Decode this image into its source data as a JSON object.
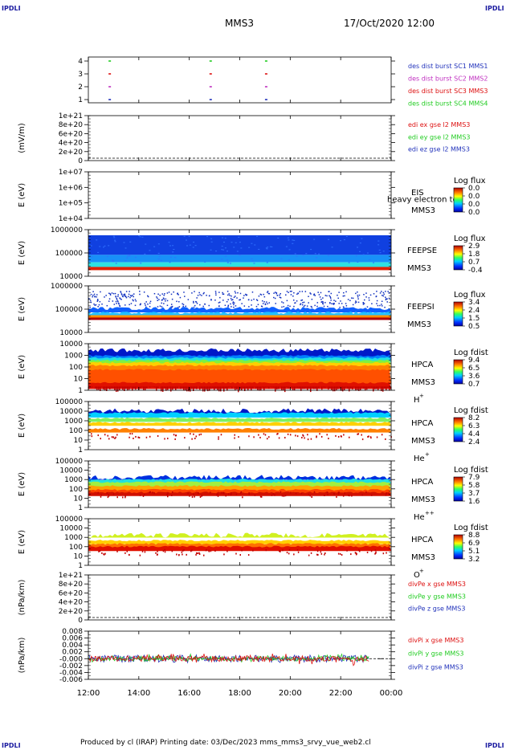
{
  "corners": {
    "label": "IPDLI"
  },
  "header": {
    "mission": "MMS3",
    "datetime": "17/Oct/2020 12:00"
  },
  "footer": {
    "text": "Produced by cl (IRAP)   Printing date: 03/Dec/2023   mms_mms3_srvy_vue_web2.cl"
  },
  "time_axis": {
    "ticks": [
      "12:00",
      "14:00",
      "16:00",
      "18:00",
      "20:00",
      "22:00",
      "00:00"
    ]
  },
  "colors": {
    "blue": "#2233bb",
    "magenta": "#c030c0",
    "red": "#dd1111",
    "green": "#22cc22"
  },
  "panels": [
    {
      "id": "burst",
      "ylabel": "",
      "yticks": [
        "4",
        "3",
        "2",
        "1"
      ],
      "legend": [
        {
          "text": "des dist burst SC1 MMS1",
          "color": "#2233bb"
        },
        {
          "text": "des dist burst SC2 MMS2",
          "color": "#c030c0"
        },
        {
          "text": "des dist burst SC3 MMS3",
          "color": "#dd1111"
        },
        {
          "text": "des dist burst SC4 MMS4",
          "color": "#22cc22"
        }
      ]
    },
    {
      "id": "edi",
      "ylabel": "(mV/m)",
      "yticks": [
        "1e+21",
        "8e+20",
        "6e+20",
        "4e+20",
        "2e+20",
        "0"
      ],
      "legend": [
        {
          "text": "edi ex gse l2 MMS3",
          "color": "#dd1111"
        },
        {
          "text": "edi ey gse l2 MMS3",
          "color": "#22cc22"
        },
        {
          "text": "edi ez gse l2 MMS3",
          "color": "#2233bb"
        }
      ]
    },
    {
      "id": "eis",
      "ylabel": "E (eV)",
      "yticks": [
        "1e+07",
        "1e+06",
        "1e+05",
        "1e+04"
      ],
      "side": [
        "EIS",
        "MMS3"
      ],
      "overlay": "heavy electron to",
      "cb": {
        "title": "Log flux",
        "values": [
          "0.0",
          "0.0",
          "0.0",
          "0.0"
        ]
      }
    },
    {
      "id": "feepse",
      "ylabel": "E (eV)",
      "yticks": [
        "1000000",
        "100000",
        "10000"
      ],
      "side": [
        "FEEPSE",
        "MMS3"
      ],
      "cb": {
        "title": "Log flux",
        "values": [
          "2.9",
          "1.8",
          "0.7",
          "-0.4"
        ]
      }
    },
    {
      "id": "feepsi",
      "ylabel": "E (eV)",
      "yticks": [
        "1000000",
        "100000",
        "10000"
      ],
      "side": [
        "FEEPSI",
        "MMS3"
      ],
      "cb": {
        "title": "Log flux",
        "values": [
          "3.4",
          "2.4",
          "1.5",
          "0.5"
        ]
      }
    },
    {
      "id": "hpca_h",
      "ylabel": "E (eV)",
      "yticks": [
        "10000",
        "1000",
        "100",
        "10",
        "1"
      ],
      "side": [
        "HPCA",
        "MMS3"
      ],
      "species": "H",
      "sup": "+",
      "cb": {
        "title": "Log fdist",
        "values": [
          "9.4",
          "6.5",
          "3.6",
          "0.7"
        ]
      }
    },
    {
      "id": "hpca_he1",
      "ylabel": "E (eV)",
      "yticks": [
        "100000",
        "10000",
        "1000",
        "100",
        "10",
        "1"
      ],
      "side": [
        "HPCA",
        "MMS3"
      ],
      "species": "He",
      "sup": "+",
      "cb": {
        "title": "Log fdist",
        "values": [
          "8.2",
          "6.3",
          "4.4",
          "2.4"
        ]
      }
    },
    {
      "id": "hpca_he2",
      "ylabel": "E (eV)",
      "yticks": [
        "100000",
        "10000",
        "1000",
        "100",
        "10",
        "1"
      ],
      "side": [
        "HPCA",
        "MMS3"
      ],
      "species": "He",
      "sup": "++",
      "cb": {
        "title": "Log fdist",
        "values": [
          "7.9",
          "5.8",
          "3.7",
          "1.6"
        ]
      }
    },
    {
      "id": "hpca_o",
      "ylabel": "E (eV)",
      "yticks": [
        "100000",
        "10000",
        "1000",
        "100",
        "10",
        "1"
      ],
      "side": [
        "HPCA",
        "MMS3"
      ],
      "species": "O",
      "sup": "+",
      "cb": {
        "title": "Log fdist",
        "values": [
          "8.8",
          "6.9",
          "5.1",
          "3.2"
        ]
      }
    },
    {
      "id": "divpe",
      "ylabel": "(nPa/km)",
      "yticks": [
        "1e+21",
        "8e+20",
        "6e+20",
        "4e+20",
        "2e+20",
        "0"
      ],
      "legend": [
        {
          "text": "divPe x gse MMS3",
          "color": "#dd1111"
        },
        {
          "text": "divPe y gse MMS3",
          "color": "#22cc22"
        },
        {
          "text": "divPe z gse MMS3",
          "color": "#2233bb"
        }
      ]
    },
    {
      "id": "divpi",
      "ylabel": "(nPa/km)",
      "yticks": [
        "0.008",
        "0.006",
        "0.004",
        "0.002",
        "-0.000",
        "-0.002",
        "-0.004",
        "-0.006"
      ],
      "legend": [
        {
          "text": "divPi x gse MMS3",
          "color": "#dd1111"
        },
        {
          "text": "divPi y gse MMS3",
          "color": "#22cc22"
        },
        {
          "text": "divPi z gse MMS3",
          "color": "#2233bb"
        }
      ]
    }
  ],
  "chart_data": {
    "type": "heatmap",
    "title": "MMS3",
    "time_range": [
      "17/Oct/2020 12:00",
      "18/Oct/2020 00:00"
    ],
    "x_ticks": [
      "12:00",
      "14:00",
      "16:00",
      "18:00",
      "20:00",
      "22:00",
      "00:00"
    ],
    "burst_intervals": {
      "series": [
        {
          "name": "des dist burst SC1 MMS1",
          "start_hours": [
            12.8,
            16.8,
            19.0
          ]
        },
        {
          "name": "des dist burst SC2 MMS2",
          "start_hours": [
            12.8,
            16.8,
            19.0
          ]
        },
        {
          "name": "des dist burst SC3 MMS3",
          "start_hours": [
            12.8,
            16.8,
            19.0
          ]
        },
        {
          "name": "des dist burst SC4 MMS4",
          "start_hours": [
            12.8,
            16.8,
            19.0
          ]
        }
      ]
    },
    "spectrograms": [
      {
        "name": "FEEPSE",
        "colorbar": "Log flux",
        "range": [
          -0.4,
          2.9
        ],
        "ylim_eV": [
          10000,
          1000000
        ]
      },
      {
        "name": "FEEPSI",
        "colorbar": "Log flux",
        "range": [
          0.5,
          3.4
        ],
        "ylim_eV": [
          10000,
          1000000
        ]
      },
      {
        "name": "HPCA H+",
        "colorbar": "Log fdist",
        "range": [
          0.7,
          9.4
        ],
        "ylim_eV": [
          1,
          10000
        ]
      },
      {
        "name": "HPCA He+",
        "colorbar": "Log fdist",
        "range": [
          2.4,
          8.2
        ],
        "ylim_eV": [
          1,
          100000
        ]
      },
      {
        "name": "HPCA He++",
        "colorbar": "Log fdist",
        "range": [
          1.6,
          7.9
        ],
        "ylim_eV": [
          1,
          100000
        ]
      },
      {
        "name": "HPCA O+",
        "colorbar": "Log fdist",
        "range": [
          3.2,
          8.8
        ],
        "ylim_eV": [
          1,
          100000
        ]
      }
    ],
    "divPi": {
      "ylim": [
        -0.006,
        0.008
      ],
      "series": [
        "divPi x gse MMS3",
        "divPi y gse MMS3",
        "divPi z gse MMS3"
      ]
    }
  }
}
